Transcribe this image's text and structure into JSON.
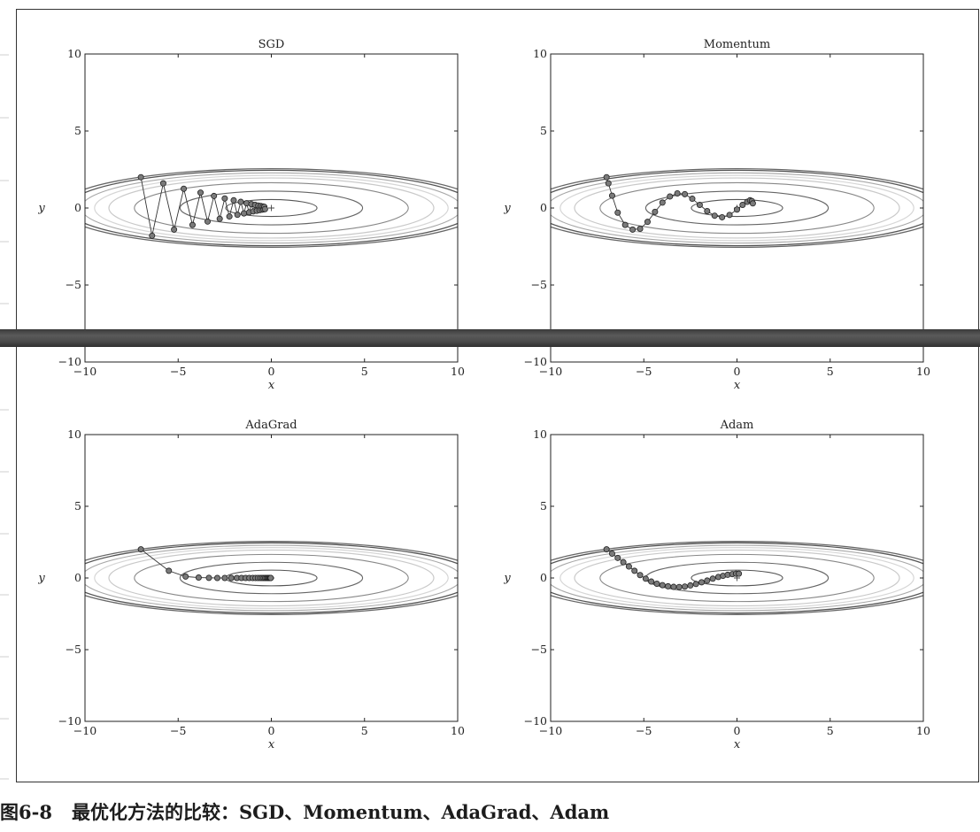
{
  "caption": {
    "figure_number": "图6-8",
    "text": "最优化方法的比较：SGD、Momentum、AdaGrad、Adam"
  },
  "colors": {
    "frame": "#333333",
    "point_fill": "#7a7a7a",
    "point_stroke": "#222222",
    "band": "#4a4a4a"
  },
  "chart_data": [
    {
      "type": "line",
      "title": "SGD",
      "xlabel": "x",
      "ylabel": "y",
      "xlim": [
        -10,
        10
      ],
      "ylim": [
        -10,
        10
      ],
      "xticks": [
        -10,
        -5,
        0,
        5,
        10
      ],
      "yticks": [
        -10,
        -5,
        0,
        5,
        10
      ],
      "contour": "f(x,y) = x^2/20 + y^2",
      "minimum_marker": [
        0,
        0
      ],
      "series": [
        {
          "x": [
            -7.0,
            -6.4,
            -5.8,
            -5.22,
            -4.7,
            -4.23,
            -3.8,
            -3.42,
            -3.08,
            -2.77,
            -2.5,
            -2.25,
            -2.02,
            -1.82,
            -1.64,
            -1.47,
            -1.33,
            -1.19,
            -1.07,
            -0.97,
            -0.87,
            -0.78,
            -0.7,
            -0.63,
            -0.57,
            -0.51,
            -0.46,
            -0.42,
            -0.38,
            -0.34
          ],
          "y": [
            2.0,
            -1.8,
            1.6,
            -1.4,
            1.25,
            -1.1,
            1.0,
            -0.88,
            0.78,
            -0.7,
            0.62,
            -0.55,
            0.5,
            -0.44,
            0.4,
            -0.35,
            0.31,
            -0.28,
            0.25,
            -0.22,
            0.2,
            -0.18,
            0.16,
            -0.14,
            0.13,
            -0.11,
            0.1,
            -0.09,
            0.08,
            -0.07
          ]
        }
      ]
    },
    {
      "type": "line",
      "title": "Momentum",
      "xlabel": "x",
      "ylabel": "y",
      "xlim": [
        -10,
        10
      ],
      "ylim": [
        -10,
        10
      ],
      "xticks": [
        -10,
        -5,
        0,
        5,
        10
      ],
      "yticks": [
        -10,
        -5,
        0,
        5,
        10
      ],
      "contour": "f(x,y) = x^2/20 + y^2",
      "minimum_marker": [
        0,
        0
      ],
      "series": [
        {
          "x": [
            -7.0,
            -6.9,
            -6.7,
            -6.4,
            -6.0,
            -5.6,
            -5.2,
            -4.8,
            -4.4,
            -4.0,
            -3.6,
            -3.2,
            -2.8,
            -2.4,
            -2.0,
            -1.6,
            -1.2,
            -0.8,
            -0.4,
            0.0,
            0.3,
            0.55,
            0.7,
            0.8,
            0.85
          ],
          "y": [
            2.0,
            1.6,
            0.8,
            -0.3,
            -1.1,
            -1.4,
            -1.35,
            -0.9,
            -0.25,
            0.35,
            0.75,
            0.95,
            0.9,
            0.6,
            0.2,
            -0.2,
            -0.5,
            -0.6,
            -0.45,
            -0.1,
            0.2,
            0.4,
            0.5,
            0.45,
            0.3
          ]
        }
      ]
    },
    {
      "type": "line",
      "title": "AdaGrad",
      "xlabel": "x",
      "ylabel": "y",
      "xlim": [
        -10,
        10
      ],
      "ylim": [
        -10,
        10
      ],
      "xticks": [
        -10,
        -5,
        0,
        5,
        10
      ],
      "yticks": [
        -10,
        -5,
        0,
        5,
        10
      ],
      "contour": "f(x,y) = x^2/20 + y^2",
      "minimum_marker": [
        0,
        0
      ],
      "series": [
        {
          "x": [
            -7.0,
            -5.5,
            -4.6,
            -3.9,
            -3.35,
            -2.9,
            -2.5,
            -2.15,
            -1.85,
            -1.6,
            -1.38,
            -1.18,
            -1.0,
            -0.85,
            -0.72,
            -0.6,
            -0.5,
            -0.41,
            -0.33,
            -0.26,
            -0.2,
            -0.15,
            -0.1,
            -0.06,
            -0.03
          ],
          "y": [
            2.0,
            0.5,
            0.1,
            0.03,
            0.01,
            0.0,
            0.0,
            0.0,
            0.0,
            0.0,
            0.0,
            0.0,
            0.0,
            0.0,
            0.0,
            0.0,
            0.0,
            0.0,
            0.0,
            0.0,
            0.0,
            0.0,
            0.0,
            0.0,
            0.0
          ]
        }
      ]
    },
    {
      "type": "line",
      "title": "Adam",
      "xlabel": "x",
      "ylabel": "y",
      "xlim": [
        -10,
        10
      ],
      "ylim": [
        -10,
        10
      ],
      "xticks": [
        -10,
        -5,
        0,
        5,
        10
      ],
      "yticks": [
        -10,
        -5,
        0,
        5,
        10
      ],
      "contour": "f(x,y) = x^2/20 + y^2",
      "minimum_marker": [
        0,
        0
      ],
      "series": [
        {
          "x": [
            -7.0,
            -6.7,
            -6.4,
            -6.1,
            -5.8,
            -5.5,
            -5.2,
            -4.9,
            -4.6,
            -4.3,
            -4.0,
            -3.7,
            -3.4,
            -3.1,
            -2.8,
            -2.5,
            -2.2,
            -1.9,
            -1.6,
            -1.3,
            -1.0,
            -0.75,
            -0.5,
            -0.25,
            -0.05,
            0.1
          ],
          "y": [
            2.0,
            1.7,
            1.4,
            1.1,
            0.8,
            0.5,
            0.2,
            -0.05,
            -0.25,
            -0.4,
            -0.5,
            -0.58,
            -0.62,
            -0.63,
            -0.6,
            -0.52,
            -0.42,
            -0.3,
            -0.18,
            -0.05,
            0.07,
            0.15,
            0.22,
            0.27,
            0.3,
            0.3
          ]
        }
      ]
    }
  ]
}
